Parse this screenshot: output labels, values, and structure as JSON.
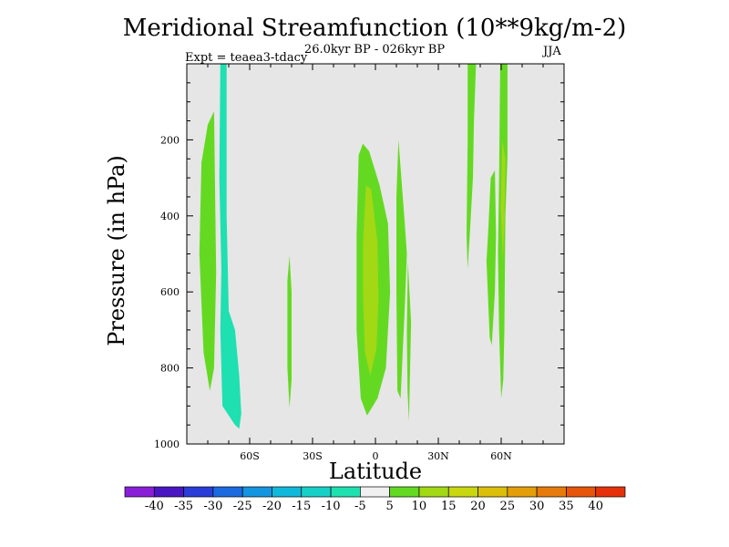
{
  "chart_data": {
    "type": "filled-contour",
    "title": "Meridional Streamfunction (10**9kg/m-2)",
    "subtitle": "26.0kyr BP - 026kyr BP",
    "left_subtitle": "Expt = teaea3-tdacy",
    "right_subtitle": "JJA",
    "xlabel": "Latitude",
    "ylabel": "Pressure (in hPa)",
    "xlim": [
      -90,
      90
    ],
    "ylim": [
      0,
      1000
    ],
    "xticks": [
      -60,
      -30,
      0,
      30,
      60
    ],
    "xtick_labels": [
      "60S",
      "30S",
      "0",
      "30N",
      "60N"
    ],
    "yticks": [
      200,
      400,
      600,
      800,
      1000
    ],
    "ytick_labels": [
      "200",
      "400",
      "600",
      "800",
      "1000"
    ],
    "background_value_color": "#e6e6e6",
    "levels": [
      -40,
      -35,
      -30,
      -25,
      -20,
      -15,
      -10,
      -5,
      5,
      10,
      15,
      20,
      25,
      30,
      35,
      40
    ],
    "level_labels": [
      "-40",
      "-35",
      "-30",
      "-25",
      "-20",
      "-15",
      "-10",
      "-5",
      "5",
      "10",
      "15",
      "20",
      "25",
      "30",
      "35",
      "40"
    ],
    "colorbar_colors": [
      "#8a1fd9",
      "#4a16c4",
      "#2a3dd8",
      "#1c6ae0",
      "#1495e0",
      "#10b8dc",
      "#16d0c8",
      "#1ee0b0",
      "#f0f0f0",
      "#64d922",
      "#a2d814",
      "#cad60f",
      "#dcbf0a",
      "#e39e0a",
      "#e67a0a",
      "#e6550a",
      "#e6320a"
    ],
    "regions": [
      {
        "name": "sh-high-lat-negative",
        "color": "#1ee0b0",
        "points": [
          [
            -74,
            0
          ],
          [
            -71,
            0
          ],
          [
            -71,
            400
          ],
          [
            -70,
            650
          ],
          [
            -67,
            700
          ],
          [
            -65,
            820
          ],
          [
            -64,
            920
          ],
          [
            -65,
            960
          ],
          [
            -67,
            950
          ],
          [
            -73,
            900
          ],
          [
            -74,
            700
          ],
          [
            -73.5,
            540
          ],
          [
            -74.5,
            300
          ]
        ]
      },
      {
        "name": "sh-high-lat-positive-west",
        "color": "#64d922",
        "points": [
          [
            -83,
            260
          ],
          [
            -80,
            160
          ],
          [
            -77,
            125
          ],
          [
            -76,
            550
          ],
          [
            -77,
            800
          ],
          [
            -79,
            860
          ],
          [
            -82,
            760
          ],
          [
            -84,
            500
          ]
        ]
      },
      {
        "name": "sh-mid-lat-positive",
        "color": "#64d922",
        "points": [
          [
            -42,
            570
          ],
          [
            -41,
            505
          ],
          [
            -40,
            600
          ],
          [
            -40,
            830
          ],
          [
            -41,
            905
          ],
          [
            -42,
            800
          ]
        ]
      },
      {
        "name": "equatorial-positive",
        "color": "#64d922",
        "points": [
          [
            -9,
            450
          ],
          [
            -8,
            240
          ],
          [
            -6,
            210
          ],
          [
            -3,
            230
          ],
          [
            2,
            320
          ],
          [
            6,
            420
          ],
          [
            7,
            600
          ],
          [
            5,
            800
          ],
          [
            1,
            880
          ],
          [
            -4,
            925
          ],
          [
            -7,
            880
          ],
          [
            -9,
            700
          ]
        ]
      },
      {
        "name": "equatorial-positive-core",
        "color": "#a2d814",
        "points": [
          [
            -6,
            480
          ],
          [
            -4.5,
            320
          ],
          [
            -2,
            330
          ],
          [
            1,
            470
          ],
          [
            1.5,
            620
          ],
          [
            0.5,
            750
          ],
          [
            -2.5,
            820
          ],
          [
            -5,
            760
          ],
          [
            -6,
            600
          ]
        ]
      },
      {
        "name": "nh-subtropic-positive",
        "color": "#64d922",
        "points": [
          [
            10,
            350
          ],
          [
            11,
            200
          ],
          [
            14,
            420
          ],
          [
            15,
            500
          ],
          [
            14,
            640
          ],
          [
            12,
            880
          ],
          [
            10.5,
            860
          ],
          [
            10,
            600
          ]
        ]
      },
      {
        "name": "nh-subtropic-positive-2",
        "color": "#64d922",
        "points": [
          [
            15,
            700
          ],
          [
            15.5,
            520
          ],
          [
            17,
            680
          ],
          [
            16,
            940
          ],
          [
            15.3,
            860
          ]
        ]
      },
      {
        "name": "nh-mid-lat-positive",
        "color": "#64d922",
        "points": [
          [
            44,
            0
          ],
          [
            48,
            0
          ],
          [
            47,
            150
          ],
          [
            46.5,
            300
          ],
          [
            45,
            450
          ],
          [
            44,
            540
          ],
          [
            43.5,
            450
          ],
          [
            44,
            200
          ]
        ]
      },
      {
        "name": "nh-high-lat-positive-a",
        "color": "#64d922",
        "points": [
          [
            54,
            420
          ],
          [
            55,
            300
          ],
          [
            57,
            280
          ],
          [
            57.5,
            450
          ],
          [
            57,
            600
          ],
          [
            55.5,
            740
          ],
          [
            54.5,
            720
          ],
          [
            53,
            520
          ]
        ]
      },
      {
        "name": "nh-high-lat-positive-b",
        "color": "#64d922",
        "points": [
          [
            59,
            300
          ],
          [
            59.5,
            0
          ],
          [
            63,
            0
          ],
          [
            63,
            250
          ],
          [
            62,
            400
          ],
          [
            61.5,
            700
          ],
          [
            61,
            830
          ],
          [
            60,
            880
          ],
          [
            59,
            700
          ],
          [
            58.5,
            500
          ]
        ]
      },
      {
        "name": "nh-high-lat-positive-core",
        "color": "#a2d814",
        "points": [
          [
            59.8,
            380
          ],
          [
            60.5,
            200
          ],
          [
            62,
            250
          ],
          [
            61.5,
            420
          ],
          [
            60.8,
            520
          ]
        ]
      }
    ]
  }
}
